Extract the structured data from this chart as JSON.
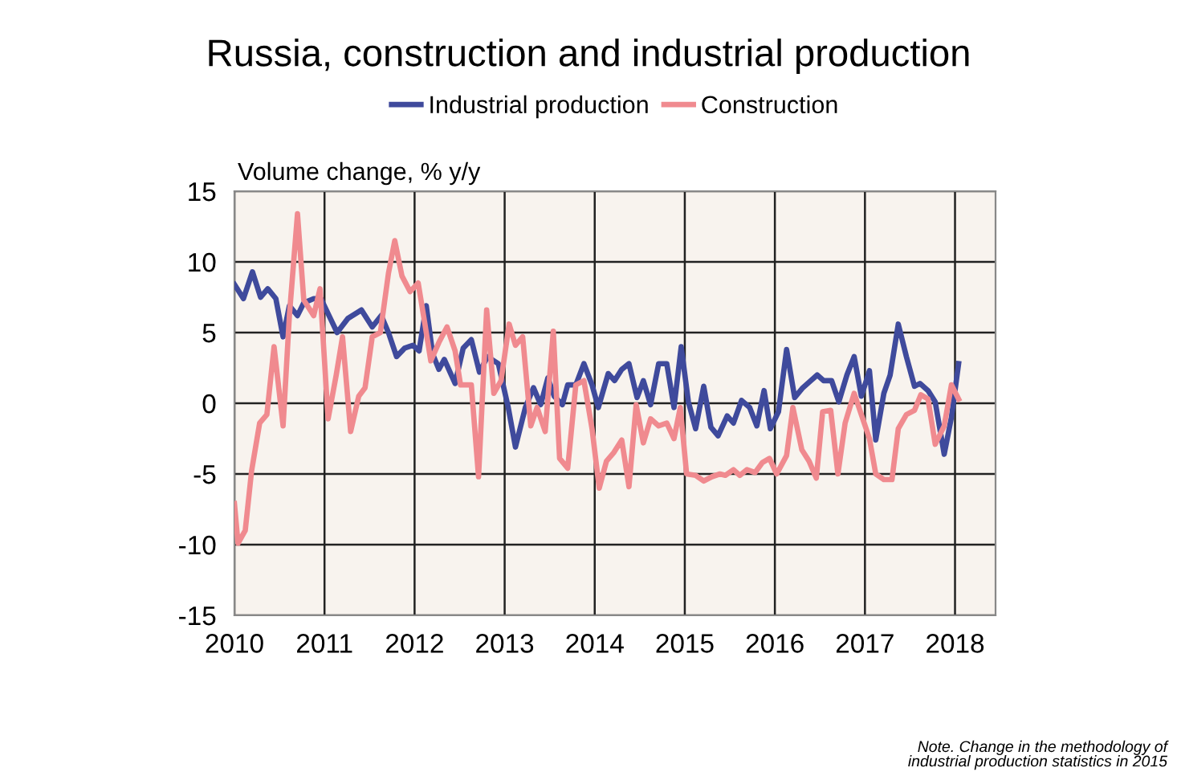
{
  "chart_data": {
    "type": "line",
    "title": "Russia, construction and industrial production",
    "ylabel": "Volume change, % y/y",
    "annotations": [
      "Note. Change in the methodology of\nindustrial production statistics in 2015"
    ],
    "xlim": [
      2010,
      2018.45
    ],
    "xticks": [
      2010,
      2011,
      2012,
      2013,
      2014,
      2015,
      2016,
      2017,
      2018
    ],
    "ylim": [
      -15,
      15
    ],
    "yticks": [
      -15,
      -10,
      -5,
      0,
      5,
      10,
      15
    ],
    "grid": true,
    "legend": "top",
    "line_style": "solid",
    "marker": "none",
    "series": [
      {
        "name": "Industrial production",
        "color": "#3f4a9c",
        "x": [
          2010.0,
          2010.1,
          2010.2,
          2010.29,
          2010.37,
          2010.46,
          2010.54,
          2010.61,
          2010.7,
          2010.77,
          2010.88,
          2010.96,
          2011.05,
          2011.14,
          2011.26,
          2011.41,
          2011.53,
          2011.63,
          2011.71,
          2011.8,
          2011.89,
          2011.98,
          2012.05,
          2012.13,
          2012.2,
          2012.27,
          2012.33,
          2012.45,
          2012.54,
          2012.63,
          2012.72,
          2012.81,
          2012.93,
          2013.04,
          2013.12,
          2013.23,
          2013.32,
          2013.4,
          2013.48,
          2013.55,
          2013.64,
          2013.7,
          2013.79,
          2013.88,
          2013.97,
          2014.04,
          2014.15,
          2014.22,
          2014.3,
          2014.38,
          2014.47,
          2014.54,
          2014.62,
          2014.71,
          2014.8,
          2014.88,
          2014.96,
          2015.04,
          2015.12,
          2015.21,
          2015.29,
          2015.37,
          2015.47,
          2015.54,
          2015.63,
          2015.72,
          2015.8,
          2015.88,
          2015.95,
          2016.04,
          2016.13,
          2016.22,
          2016.31,
          2016.4,
          2016.47,
          2016.54,
          2016.63,
          2016.71,
          2016.8,
          2016.88,
          2016.96,
          2017.05,
          2017.12,
          2017.21,
          2017.28,
          2017.37,
          2017.46,
          2017.55,
          2017.61,
          2017.7,
          2017.78,
          2017.88,
          2017.96,
          2018.04
        ],
        "values": [
          8.4,
          7.4,
          9.3,
          7.5,
          8.1,
          7.4,
          4.7,
          6.9,
          6.2,
          7.1,
          7.4,
          7.4,
          6.2,
          5.0,
          6.0,
          6.6,
          5.4,
          6.2,
          5.0,
          3.3,
          3.9,
          4.1,
          3.7,
          6.9,
          3.5,
          2.4,
          3.1,
          1.4,
          3.9,
          4.5,
          2.2,
          3.3,
          2.8,
          -0.3,
          -3.1,
          -0.3,
          1.1,
          -0.1,
          1.8,
          0.5,
          -0.1,
          1.3,
          1.3,
          2.8,
          1.3,
          -0.3,
          2.1,
          1.6,
          2.4,
          2.8,
          0.4,
          1.6,
          -0.1,
          2.8,
          2.8,
          -0.3,
          4.0,
          0.1,
          -1.8,
          1.2,
          -1.7,
          -2.3,
          -0.9,
          -1.4,
          0.2,
          -0.3,
          -1.6,
          0.9,
          -1.8,
          -0.6,
          3.8,
          0.4,
          1.1,
          1.6,
          2.0,
          1.6,
          1.6,
          0.1,
          2.0,
          3.3,
          0.5,
          2.3,
          -2.6,
          0.7,
          2.0,
          5.6,
          3.3,
          1.2,
          1.4,
          0.9,
          0.1,
          -3.6,
          -1.0,
          2.8
        ]
      },
      {
        "name": "Construction",
        "color": "#f08a8f",
        "x": [
          2010.0,
          2010.04,
          2010.12,
          2010.19,
          2010.28,
          2010.36,
          2010.44,
          2010.54,
          2010.61,
          2010.7,
          2010.77,
          2010.88,
          2010.95,
          2011.04,
          2011.13,
          2011.2,
          2011.29,
          2011.38,
          2011.45,
          2011.53,
          2011.62,
          2011.71,
          2011.78,
          2011.86,
          2011.95,
          2012.04,
          2012.11,
          2012.18,
          2012.27,
          2012.36,
          2012.45,
          2012.51,
          2012.63,
          2012.71,
          2012.8,
          2012.88,
          2012.96,
          2013.05,
          2013.12,
          2013.2,
          2013.29,
          2013.36,
          2013.45,
          2013.54,
          2013.61,
          2013.7,
          2013.79,
          2013.88,
          2013.97,
          2014.05,
          2014.13,
          2014.21,
          2014.3,
          2014.38,
          2014.46,
          2014.54,
          2014.62,
          2014.71,
          2014.8,
          2014.88,
          2014.95,
          2015.02,
          2015.12,
          2015.21,
          2015.3,
          2015.39,
          2015.45,
          2015.54,
          2015.61,
          2015.69,
          2015.78,
          2015.86,
          2015.94,
          2016.02,
          2016.13,
          2016.2,
          2016.3,
          2016.38,
          2016.46,
          2016.53,
          2016.62,
          2016.7,
          2016.78,
          2016.88,
          2016.96,
          2017.05,
          2017.12,
          2017.21,
          2017.3,
          2017.37,
          2017.46,
          2017.55,
          2017.62,
          2017.7,
          2017.78,
          2017.88,
          2017.96,
          2018.04
        ],
        "values": [
          -7.1,
          -9.9,
          -9.0,
          -4.8,
          -1.4,
          -0.8,
          4.0,
          -1.6,
          6.2,
          13.4,
          7.3,
          6.2,
          8.1,
          -1.1,
          2.0,
          4.7,
          -2.0,
          0.5,
          1.1,
          4.7,
          5.0,
          9.2,
          11.5,
          9.0,
          7.9,
          8.5,
          5.8,
          3.0,
          4.3,
          5.4,
          3.7,
          1.3,
          1.3,
          -5.2,
          6.6,
          0.7,
          1.6,
          5.6,
          4.1,
          4.7,
          -1.6,
          -0.3,
          -2.0,
          5.1,
          -3.9,
          -4.6,
          1.3,
          1.6,
          -1.8,
          -6.0,
          -4.1,
          -3.5,
          -2.6,
          -5.9,
          -0.1,
          -2.8,
          -1.1,
          -1.6,
          -1.4,
          -2.5,
          -0.3,
          -5.0,
          -5.1,
          -5.5,
          -5.2,
          -5.0,
          -5.1,
          -4.7,
          -5.1,
          -4.7,
          -4.9,
          -4.2,
          -3.9,
          -5.0,
          -3.7,
          -0.3,
          -3.3,
          -4.1,
          -5.3,
          -0.6,
          -0.5,
          -5.0,
          -1.4,
          0.7,
          -0.8,
          -2.5,
          -5.0,
          -5.4,
          -5.4,
          -1.8,
          -0.8,
          -0.5,
          0.6,
          0.3,
          -2.9,
          -1.6,
          1.3,
          0.3
        ]
      }
    ]
  }
}
